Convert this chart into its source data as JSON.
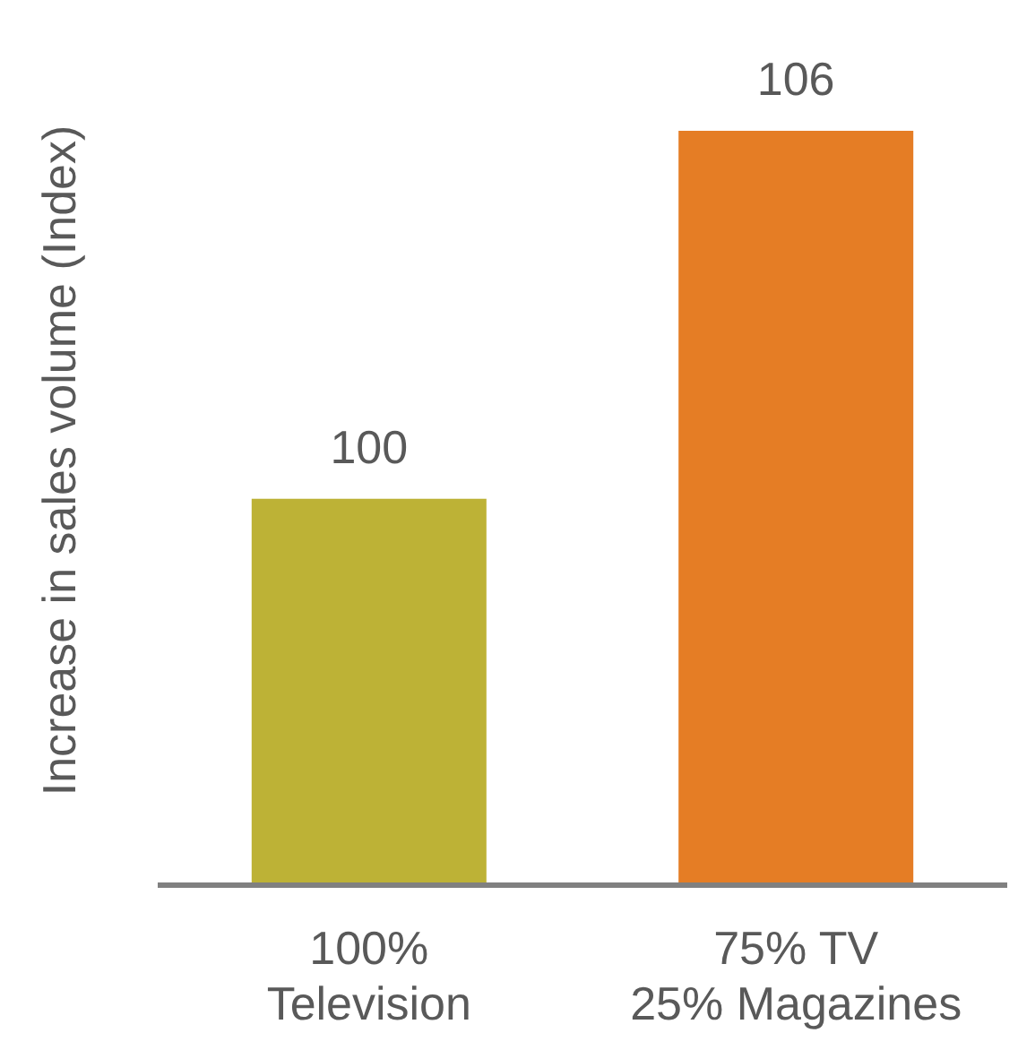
{
  "chart_data": {
    "type": "bar",
    "ylabel": "Increase in sales volume (Index)",
    "categories": [
      "100%\nTelevision",
      "75% TV\n25% Magazines"
    ],
    "values": [
      100,
      106
    ],
    "colors": [
      "#bdb236",
      "#e57d25"
    ],
    "ylim": [
      93.7,
      106
    ],
    "data_labels": true,
    "tick_labels": "x"
  }
}
